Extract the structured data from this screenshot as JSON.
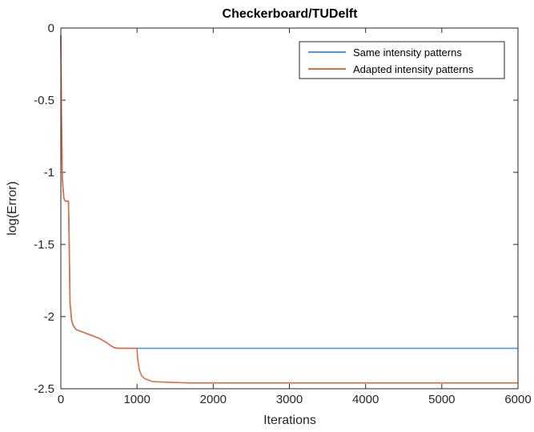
{
  "chart_data": {
    "type": "line",
    "title": "Checkerboard/TUDelft",
    "xlabel": "Iterations",
    "ylabel": "log(Error)",
    "xlim": [
      0,
      6000
    ],
    "ylim": [
      -2.5,
      0
    ],
    "xticks": [
      "0",
      "1000",
      "2000",
      "3000",
      "4000",
      "5000",
      "6000"
    ],
    "yticks": [
      "0",
      "-0.5",
      "-1",
      "-1.5",
      "-2",
      "-2.5"
    ],
    "legend_position": "top-right",
    "grid": false,
    "series": [
      {
        "name": "Same intensity patterns",
        "color": "#4c9bd6",
        "x": [
          0,
          8,
          20,
          40,
          60,
          80,
          100,
          110,
          120,
          140,
          160,
          200,
          300,
          400,
          500,
          600,
          650,
          700,
          750,
          800,
          1000,
          6000
        ],
        "y": [
          -0.05,
          -0.6,
          -1.05,
          -1.18,
          -1.2,
          -1.2,
          -1.2,
          -1.5,
          -1.9,
          -2.02,
          -2.06,
          -2.09,
          -2.11,
          -2.13,
          -2.15,
          -2.18,
          -2.2,
          -2.215,
          -2.22,
          -2.22,
          -2.22,
          -2.22
        ]
      },
      {
        "name": "Adapted intensity patterns",
        "color": "#e46c40",
        "x": [
          0,
          8,
          20,
          40,
          60,
          80,
          100,
          110,
          120,
          140,
          160,
          200,
          300,
          400,
          500,
          600,
          650,
          700,
          750,
          800,
          1000,
          1010,
          1030,
          1060,
          1100,
          1200,
          1400,
          1700,
          2000,
          3000,
          4000,
          5000,
          6000
        ],
        "y": [
          -0.05,
          -0.6,
          -1.05,
          -1.18,
          -1.2,
          -1.2,
          -1.2,
          -1.5,
          -1.9,
          -2.02,
          -2.06,
          -2.09,
          -2.11,
          -2.13,
          -2.15,
          -2.18,
          -2.2,
          -2.215,
          -2.22,
          -2.22,
          -2.22,
          -2.3,
          -2.37,
          -2.41,
          -2.43,
          -2.45,
          -2.455,
          -2.46,
          -2.46,
          -2.46,
          -2.46,
          -2.46,
          -2.46
        ]
      }
    ]
  }
}
